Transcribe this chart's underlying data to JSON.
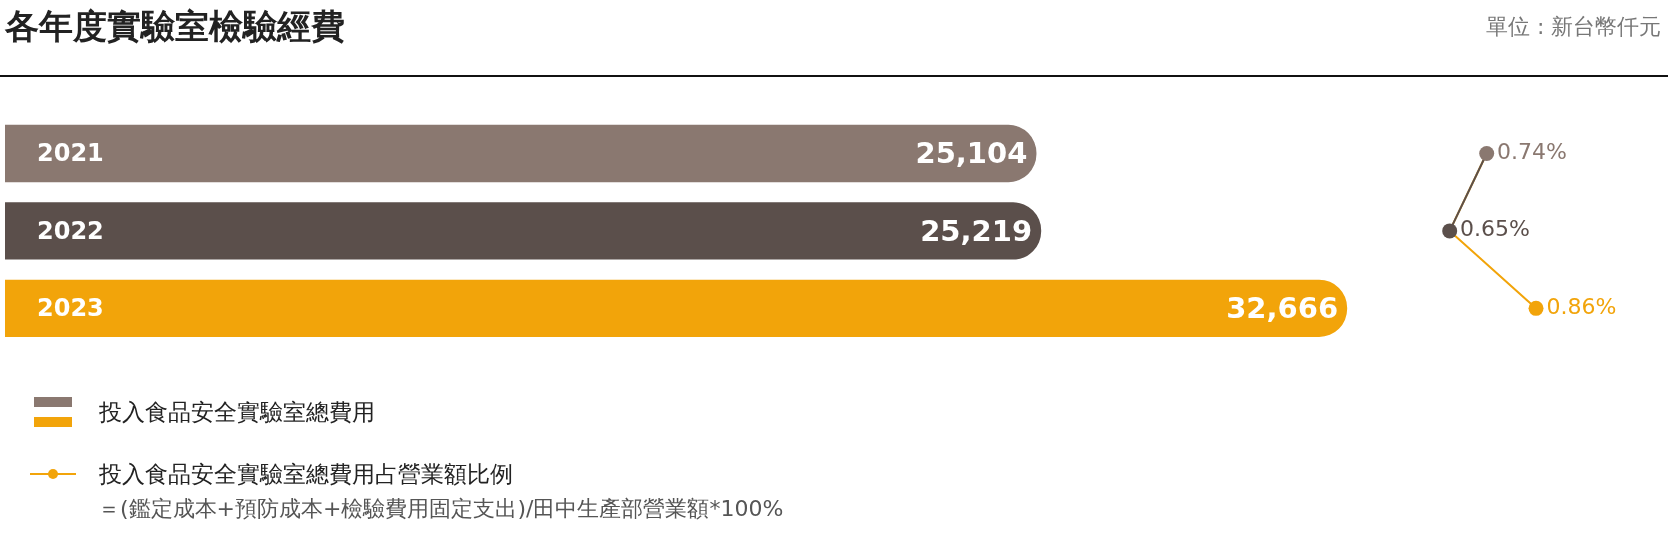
{
  "chart_data": [
    {
      "type": "bar",
      "orientation": "horizontal",
      "title": "各年度實驗室檢驗經費",
      "annotations": [
        "單位 : 新台幣仟元"
      ],
      "categories": [
        "2021",
        "2022",
        "2023"
      ],
      "legend": "bottom left",
      "series": [
        {
          "name": "投入食品安全實驗室總費用",
          "colors": [
            "#8a7870",
            "#5b4f4b",
            "#f2a40a"
          ],
          "values": [
            25104,
            25219,
            32666
          ],
          "value_labels": [
            "25,104",
            "25,219",
            "32,666"
          ]
        }
      ]
    },
    {
      "type": "line",
      "orientation": "horizontal",
      "categories": [
        "2021",
        "2022",
        "2023"
      ],
      "tick_labels": false,
      "marker": "circle",
      "legend": "bottom left",
      "annotations": [
        "＝(鑑定成本+預防成本+檢驗費用固定支出)/田中生產部營業額*100%"
      ],
      "series": [
        {
          "name": "投入食品安全實驗室總費用占營業額比例",
          "color": "#f2a40a",
          "colors": [
            "#8a7870",
            "#5b4f4b",
            "#f2a40a"
          ],
          "values": [
            0.74,
            0.65,
            0.86
          ],
          "value_labels": [
            "0.74%",
            "0.65%",
            "0.86%"
          ]
        }
      ]
    }
  ]
}
